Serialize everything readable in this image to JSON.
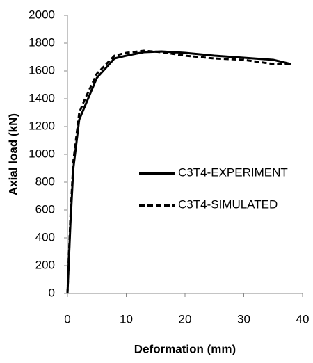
{
  "chart_data": {
    "type": "line",
    "x_label": "Deformation (mm)",
    "y_label": "Axial load (kN)",
    "x": [
      0,
      0.5,
      1,
      2,
      3,
      5,
      8,
      10,
      13,
      16,
      20,
      25,
      30,
      35,
      38
    ],
    "series": [
      {
        "name": "C3T4-EXPERIMENT",
        "color": "#000000",
        "style": "solid",
        "values": [
          0,
          500,
          900,
          1250,
          1350,
          1550,
          1690,
          1710,
          1735,
          1740,
          1730,
          1710,
          1695,
          1680,
          1650
        ]
      },
      {
        "name": "C3T4-SIMULATED",
        "color": "#000000",
        "style": "dashed",
        "values": [
          0,
          550,
          950,
          1300,
          1400,
          1580,
          1710,
          1730,
          1745,
          1735,
          1710,
          1690,
          1680,
          1650,
          1650
        ]
      }
    ],
    "xlim": [
      0,
      40
    ],
    "xticks": [
      0,
      10,
      20,
      30,
      40
    ],
    "ylim": [
      0,
      2000
    ],
    "yticks": [
      0,
      200,
      400,
      600,
      800,
      1000,
      1200,
      1400,
      1600,
      1800,
      2000
    ],
    "grid": false,
    "legend": "right"
  }
}
